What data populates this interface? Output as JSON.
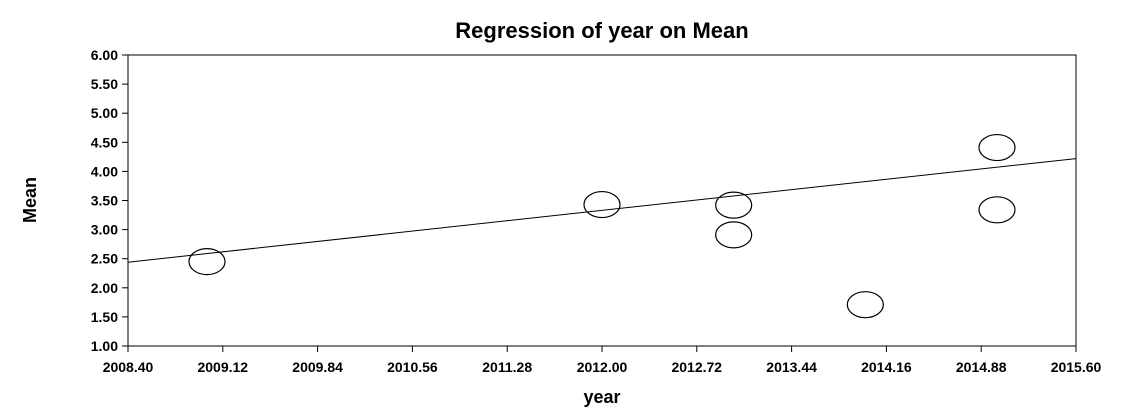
{
  "chart_data": {
    "type": "scatter",
    "title": "Regression of year on Mean",
    "xlabel": "year",
    "ylabel": "Mean",
    "xlim": [
      2008.4,
      2015.6
    ],
    "ylim": [
      1.0,
      6.0
    ],
    "x_ticks": [
      "2008.40",
      "2009.12",
      "2009.84",
      "2010.56",
      "2011.28",
      "2012.00",
      "2012.72",
      "2013.44",
      "2014.16",
      "2014.88",
      "2015.60"
    ],
    "y_ticks": [
      "1.00",
      "1.50",
      "2.00",
      "2.50",
      "3.00",
      "3.50",
      "4.00",
      "4.50",
      "5.00",
      "5.50",
      "6.00"
    ],
    "grid": false,
    "series": [
      {
        "points": [
          {
            "x": 2009.0,
            "y": 2.45
          },
          {
            "x": 2012.0,
            "y": 3.43
          },
          {
            "x": 2013.0,
            "y": 3.42
          },
          {
            "x": 2013.0,
            "y": 2.91
          },
          {
            "x": 2014.0,
            "y": 1.71
          },
          {
            "x": 2015.0,
            "y": 4.41
          },
          {
            "x": 2015.0,
            "y": 3.34
          }
        ]
      }
    ],
    "regression_line": {
      "x": [
        2008.4,
        2015.6
      ],
      "y": [
        2.44,
        4.22
      ]
    }
  }
}
